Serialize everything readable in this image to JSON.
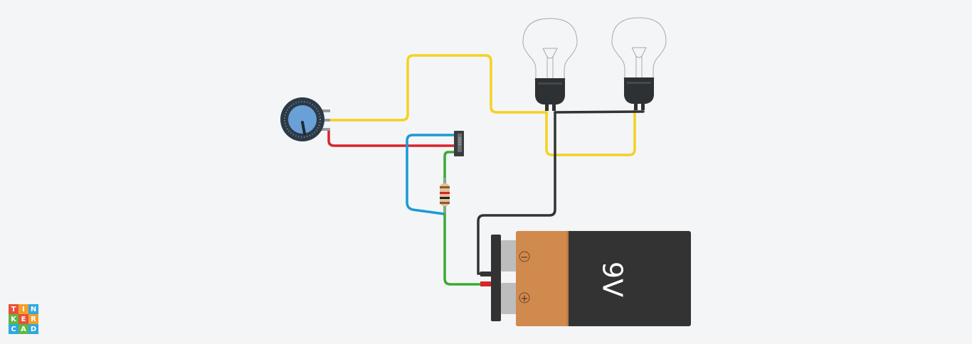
{
  "battery": {
    "label": "9V",
    "minus_symbol": "−",
    "plus_symbol": "+"
  },
  "logo": {
    "letters": [
      "T",
      "I",
      "N",
      "K",
      "E",
      "R",
      "C",
      "A",
      "D"
    ],
    "colors": [
      "#e8503a",
      "#f2a02c",
      "#2ea8e0",
      "#5fb744",
      "#e8503a",
      "#f2a02c",
      "#2ea8e0",
      "#5fb744",
      "#2ea8e0"
    ]
  },
  "colors": {
    "wire_yellow": "#f4d21f",
    "wire_red": "#d8242a",
    "wire_blue": "#1b9ad6",
    "wire_green": "#3aaa35",
    "wire_black": "#333333",
    "battery_body": "#d18a4e",
    "battery_dark": "#333333",
    "pot_knob": "#6aa0d8"
  }
}
